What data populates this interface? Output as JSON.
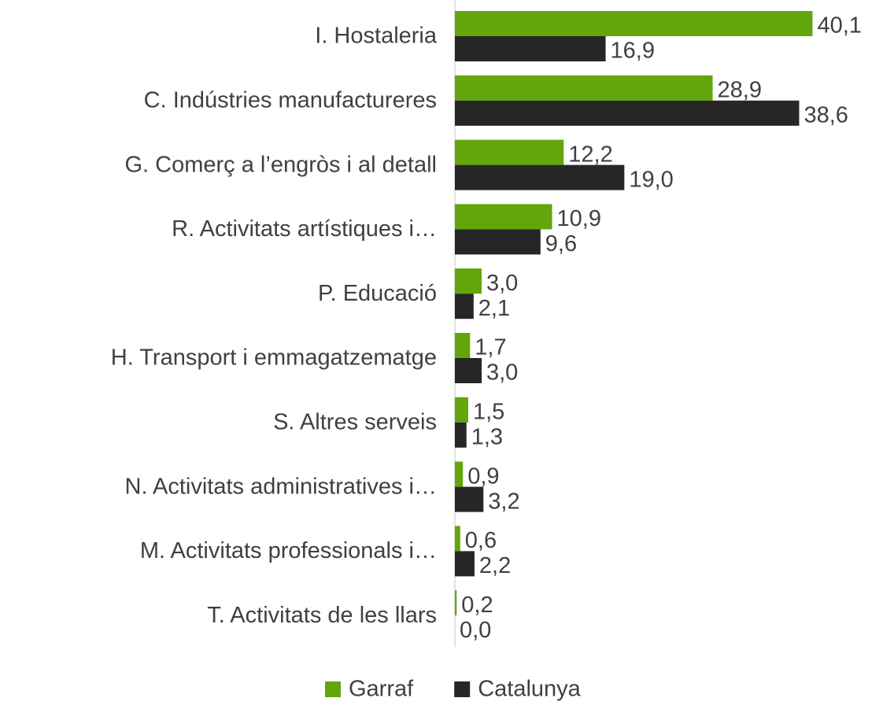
{
  "chart_data": {
    "type": "hbar",
    "categories": [
      "I. Hostaleria",
      "C. Indústries manufactureres",
      "G. Comerç a l’engròs i al detall",
      "R. Activitats artístiques i…",
      "P. Educació",
      "H. Transport i emmagatzematge",
      "S. Altres serveis",
      "N. Activitats administratives i…",
      "M. Activitats professionals i…",
      "T. Activitats de les llars"
    ],
    "series": [
      {
        "name": "Garraf",
        "color": "#62a60c",
        "values": [
          40.1,
          28.9,
          12.2,
          10.9,
          3.0,
          1.7,
          1.5,
          0.9,
          0.6,
          0.2
        ],
        "value_labels": [
          "40,1",
          "28,9",
          "12,2",
          "10,9",
          "3,0",
          "1,7",
          "1,5",
          "0,9",
          "0,6",
          "0,2"
        ]
      },
      {
        "name": "Catalunya",
        "color": "#262626",
        "values": [
          16.9,
          38.6,
          19.0,
          9.6,
          2.1,
          3.0,
          1.3,
          3.2,
          2.2,
          0.0
        ],
        "value_labels": [
          "16,9",
          "38,6",
          "19,0",
          "9,6",
          "2,1",
          "3,0",
          "1,3",
          "3,2",
          "2,2",
          "0,0"
        ]
      }
    ],
    "xlim": [
      0,
      48
    ],
    "legend": "bottom"
  }
}
